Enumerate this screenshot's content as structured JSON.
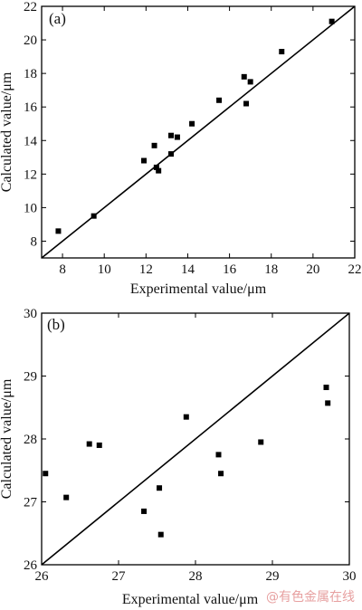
{
  "chart_data": [
    {
      "type": "scatter",
      "panel_label": "(a)",
      "xlabel": "Experimental value/μm",
      "ylabel": "Calculated value/μm",
      "xlim": [
        7,
        22
      ],
      "ylim": [
        7,
        22
      ],
      "xticks": [
        8,
        10,
        12,
        14,
        16,
        18,
        20,
        22
      ],
      "yticks": [
        8,
        10,
        12,
        14,
        16,
        18,
        20,
        22
      ],
      "reference_line": [
        [
          7,
          7
        ],
        [
          22,
          22
        ]
      ],
      "x": [
        7.8,
        9.5,
        11.9,
        12.4,
        12.5,
        12.6,
        13.2,
        13.2,
        13.5,
        14.2,
        15.5,
        16.7,
        16.8,
        17.0,
        18.5,
        20.9
      ],
      "y": [
        8.6,
        9.5,
        12.8,
        13.7,
        12.4,
        12.2,
        13.2,
        14.3,
        14.2,
        15.0,
        16.4,
        17.8,
        16.2,
        17.5,
        19.3,
        21.1
      ]
    },
    {
      "type": "scatter",
      "panel_label": "(b)",
      "xlabel": "Experimental value/μm",
      "ylabel": "Calculated value/μm",
      "xlim": [
        26,
        30
      ],
      "ylim": [
        26,
        30
      ],
      "xticks": [
        26,
        27,
        28,
        29,
        30
      ],
      "yticks": [
        26,
        27,
        28,
        29,
        30
      ],
      "reference_line": [
        [
          26,
          26
        ],
        [
          30,
          30
        ]
      ],
      "x": [
        26.05,
        26.32,
        26.62,
        26.75,
        27.33,
        27.53,
        27.55,
        27.88,
        28.3,
        28.33,
        28.85,
        29.7,
        29.72
      ],
      "y": [
        27.45,
        27.07,
        27.92,
        27.9,
        26.85,
        27.22,
        26.48,
        28.35,
        27.75,
        27.45,
        27.95,
        28.82,
        28.57
      ]
    }
  ],
  "watermark": "@有色金属在线"
}
